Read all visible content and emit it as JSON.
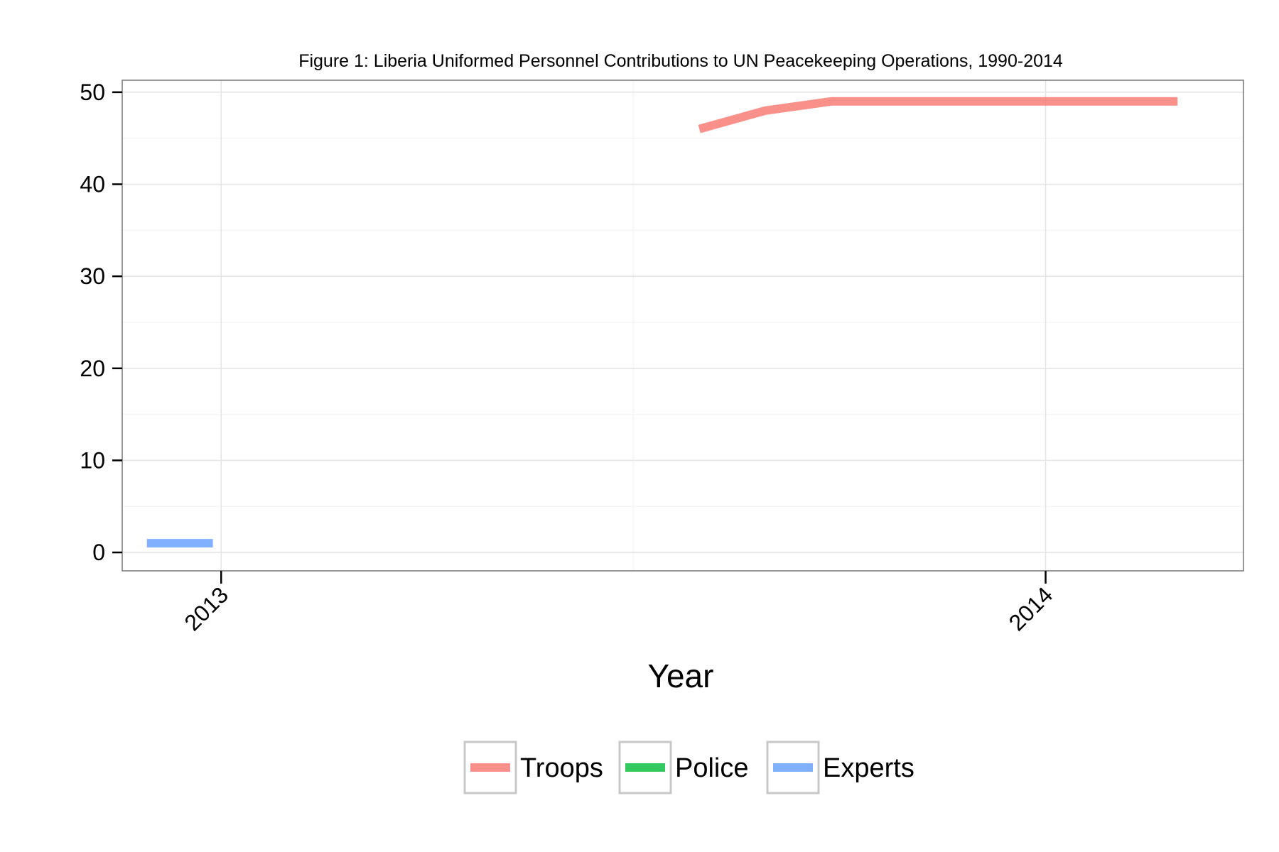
{
  "chart_data": {
    "type": "line",
    "title": "Figure 1: Liberia Uniformed Personnel Contributions to UN Peacekeeping Operations, 1990-2014",
    "xlabel": "Year",
    "ylabel": "",
    "x_ticks": [
      "2013",
      "2014"
    ],
    "x_range": [
      2012.88,
      2014.24
    ],
    "ylim": [
      -2,
      51.3
    ],
    "y_ticks": [
      0,
      10,
      20,
      30,
      40,
      50
    ],
    "grid": true,
    "legend_position": "bottom",
    "series": [
      {
        "name": "Troops",
        "color": "#F8766D",
        "x": [
          2013.58,
          2013.66,
          2013.74,
          2013.83,
          2013.91,
          2013.99,
          2014.08,
          2014.16
        ],
        "values": [
          46,
          48,
          49,
          49,
          49,
          49,
          49,
          49
        ]
      },
      {
        "name": "Police",
        "color": "#00BA38",
        "x": [],
        "values": []
      },
      {
        "name": "Experts",
        "color": "#619CFF",
        "x": [
          2012.91,
          2012.99
        ],
        "values": [
          1,
          1
        ]
      }
    ]
  }
}
